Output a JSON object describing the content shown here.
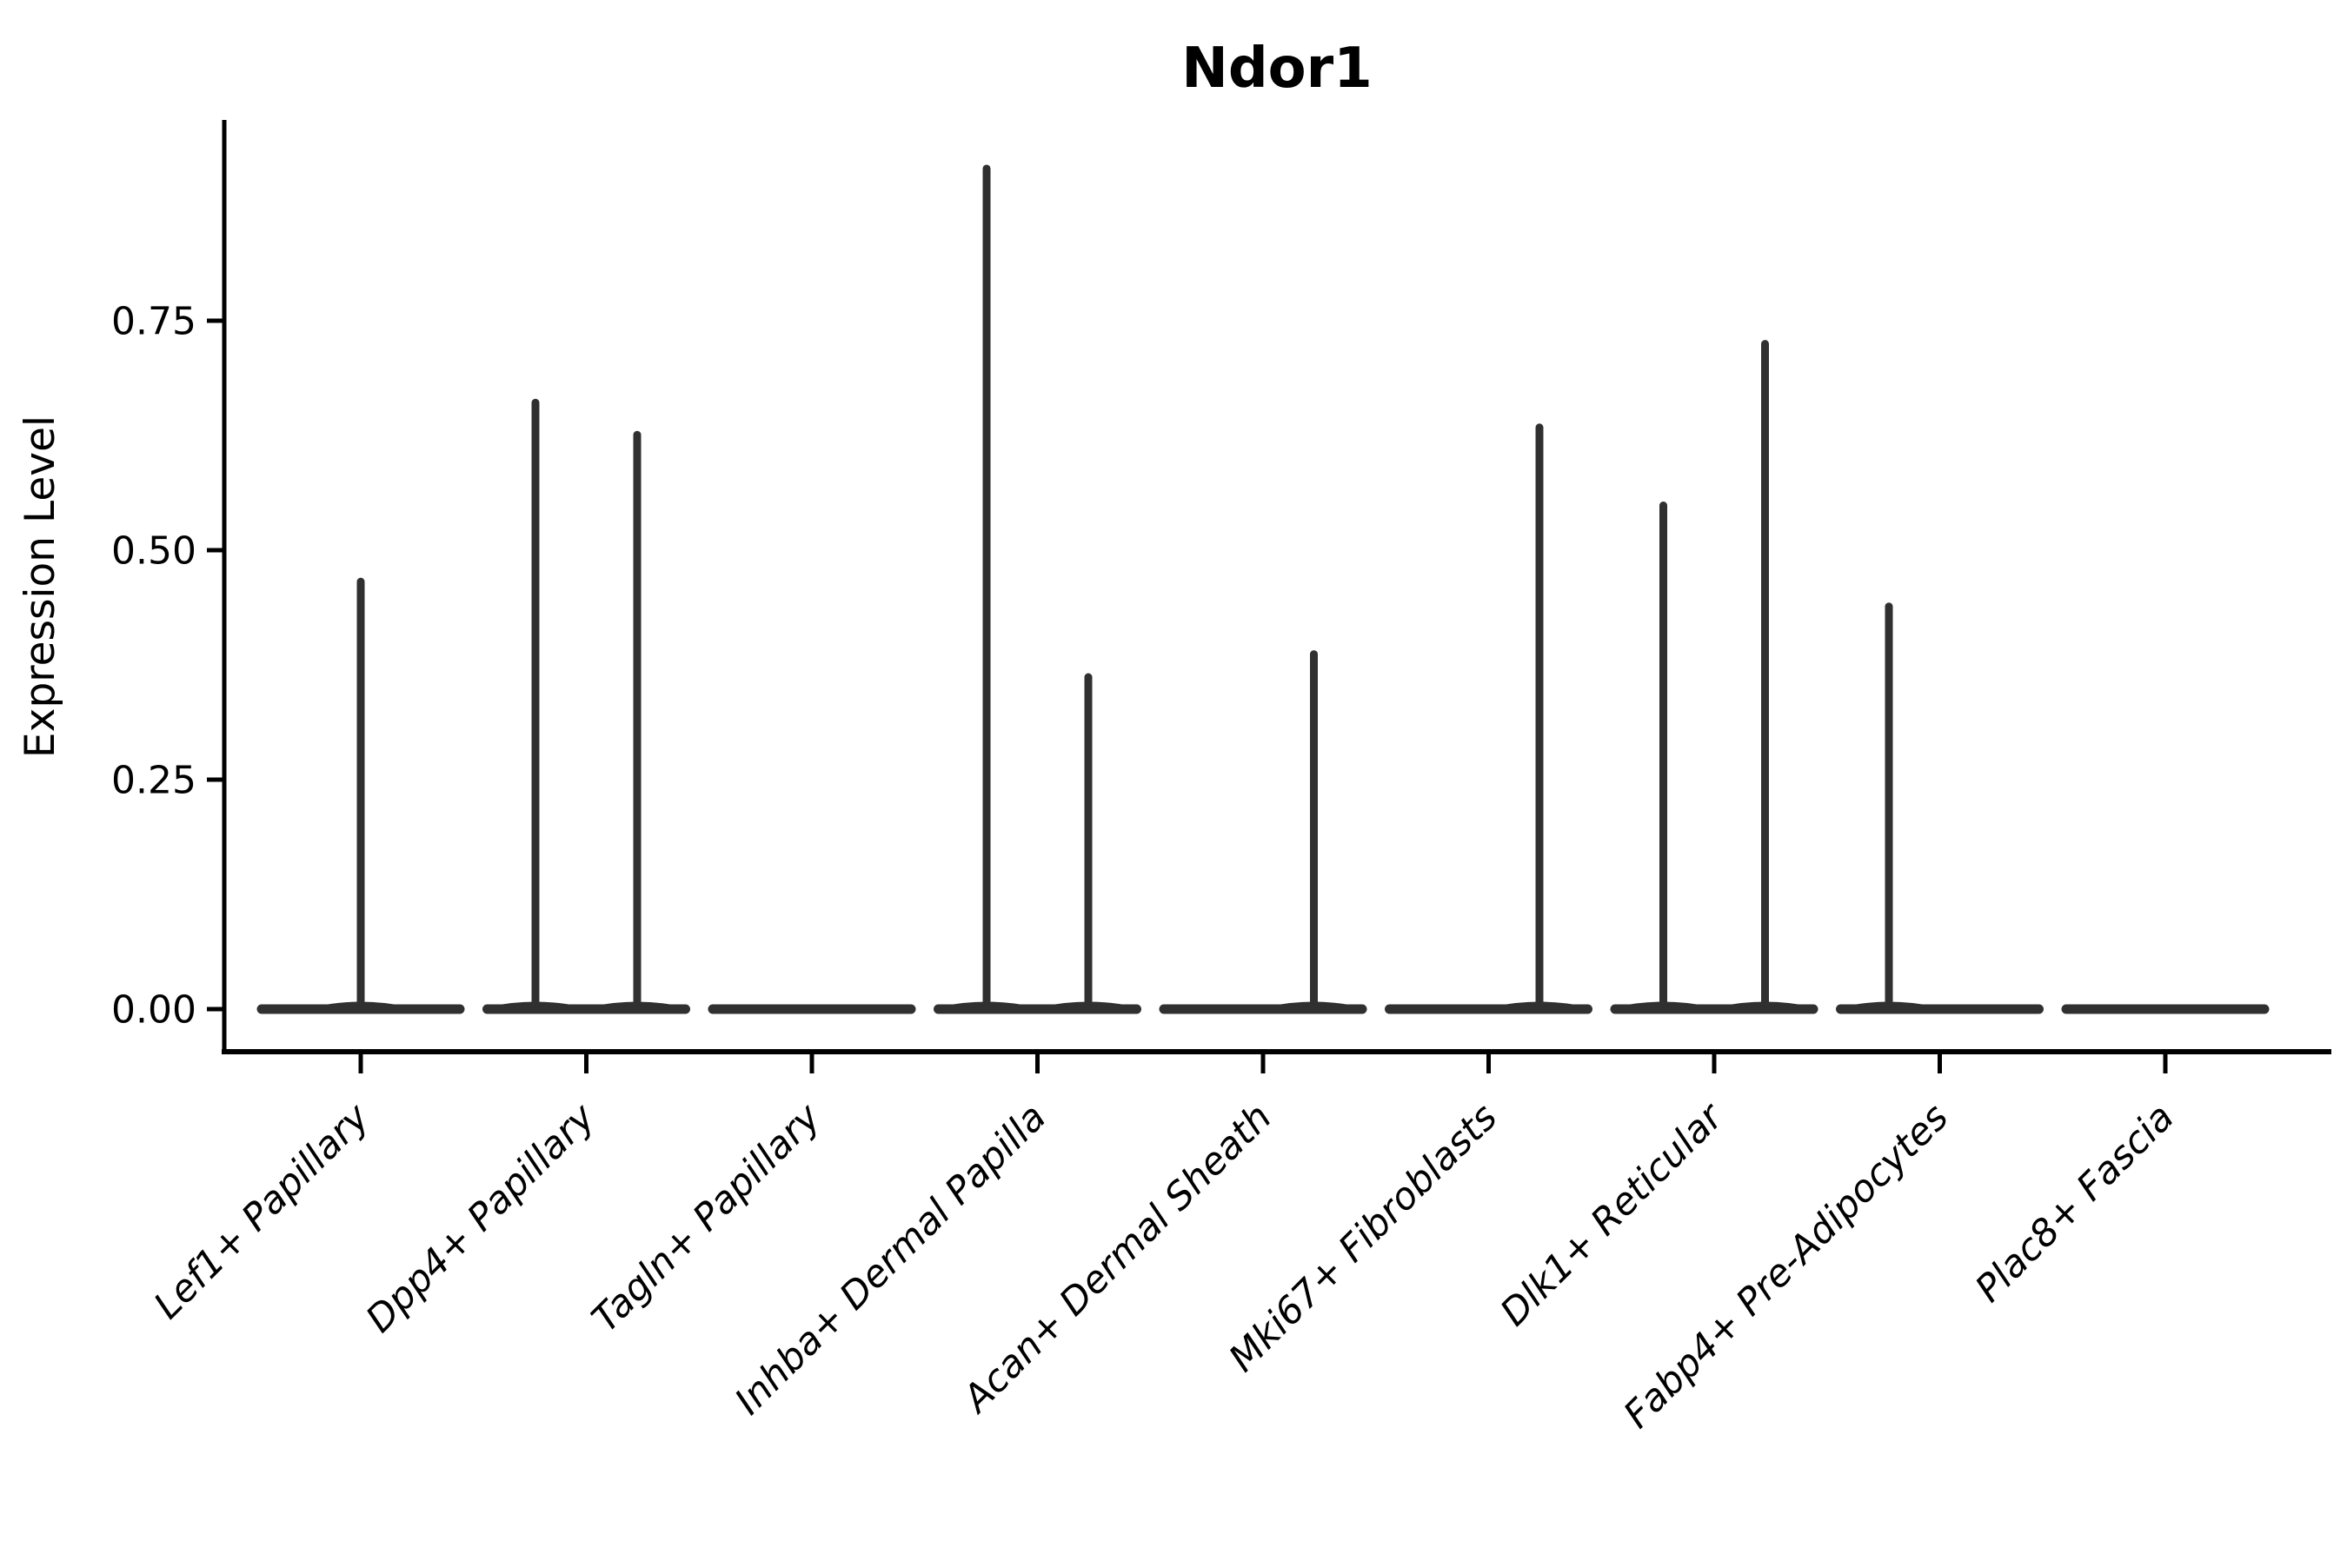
{
  "title": "Ndor1",
  "y_axis": {
    "label": "Expression Level",
    "tick_labels": [
      "0.00",
      "0.25",
      "0.50",
      "0.75"
    ],
    "tick_values": [
      0,
      0.25,
      0.5,
      0.75
    ]
  },
  "x_axis": {
    "categories": [
      "Lef1+ Papillary",
      "Dpp4+ Papillary",
      "Tagln+ Papillary",
      "Inhba+ Dermal Papilla",
      "Acan+ Dermal Sheath",
      "Mki67+ Fibroblasts",
      "Dlk1+ Reticular",
      "Fabp4+ Pre-Adipocytes",
      "Plac8+ Fascia"
    ]
  },
  "colors": {
    "violin": "#303030",
    "axis": "#000000",
    "text": "#000000",
    "background": "#ffffff"
  },
  "chart_data": {
    "type": "violin",
    "title": "Ndor1",
    "xlabel": "",
    "ylabel": "Expression Level",
    "ylim": [
      0,
      0.97
    ],
    "yticks": [
      0,
      0.25,
      0.5,
      0.75
    ],
    "ytick_labels": [
      "0.00",
      "0.25",
      "0.50",
      "0.75"
    ],
    "grid": false,
    "legend": "none",
    "categories": [
      "Lef1+ Papillary",
      "Dpp4+ Papillary",
      "Tagln+ Papillary",
      "Inhba+ Dermal Papilla",
      "Acan+ Dermal Sheath",
      "Mki67+ Fibroblasts",
      "Dlk1+ Reticular",
      "Fabp4+ Pre-Adipocytes",
      "Plac8+ Fascia"
    ],
    "violins": [
      {
        "category": "Lef1+ Papillary",
        "baseline_value": 0,
        "spikes": [
          {
            "position": "center",
            "value": 0.47
          }
        ]
      },
      {
        "category": "Dpp4+ Papillary",
        "baseline_value": 0,
        "spikes": [
          {
            "position": "left",
            "value": 0.665
          },
          {
            "position": "right",
            "value": 0.63
          }
        ]
      },
      {
        "category": "Tagln+ Papillary",
        "baseline_value": 0,
        "spikes": []
      },
      {
        "category": "Inhba+ Dermal Papilla",
        "baseline_value": 0,
        "spikes": [
          {
            "position": "left",
            "value": 0.92
          },
          {
            "position": "right",
            "value": 0.366
          }
        ]
      },
      {
        "category": "Acan+ Dermal Sheath",
        "baseline_value": 0,
        "spikes": [
          {
            "position": "right",
            "value": 0.391
          }
        ]
      },
      {
        "category": "Mki67+ Fibroblasts",
        "baseline_value": 0,
        "spikes": [
          {
            "position": "right",
            "value": 0.638
          }
        ]
      },
      {
        "category": "Dlk1+ Reticular",
        "baseline_value": 0,
        "spikes": [
          {
            "position": "left",
            "value": 0.553
          },
          {
            "position": "right",
            "value": 0.729
          }
        ]
      },
      {
        "category": "Fabp4+ Pre-Adipocytes",
        "baseline_value": 0,
        "spikes": [
          {
            "position": "left",
            "value": 0.443
          }
        ]
      },
      {
        "category": "Plac8+ Fascia",
        "baseline_value": 0,
        "spikes": []
      }
    ]
  }
}
